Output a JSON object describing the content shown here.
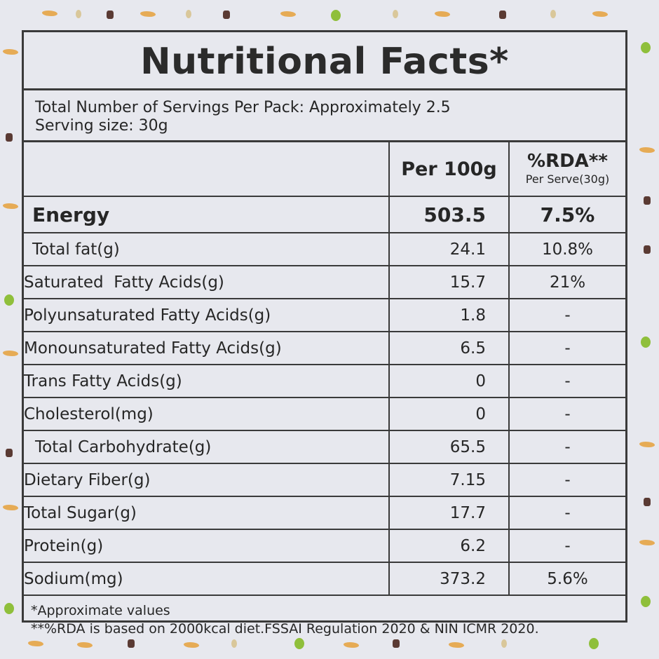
{
  "title": "Nutritional Facts*",
  "servings": {
    "per_pack": "Total Number of Servings Per Pack: Approximately 2.5",
    "serving_size": "Serving size: 30g"
  },
  "columns": {
    "per100": "Per 100g",
    "rda": "%RDA**",
    "rda_sub": "Per Serve(30g)"
  },
  "energy": {
    "label": "Energy",
    "per100": "503.5",
    "rda": "7.5%"
  },
  "rows": [
    {
      "label": "Total fat(g)",
      "per100": "24.1",
      "rda": "10.8%"
    },
    {
      "label": "Saturated  Fatty Acids(g)",
      "per100": "15.7",
      "rda": "21%"
    },
    {
      "label": "Polyunsaturated Fatty Acids(g)",
      "per100": "1.8",
      "rda": "-"
    },
    {
      "label": "Monounsaturated Fatty Acids(g)",
      "per100": "6.5",
      "rda": "-"
    },
    {
      "label": "Trans Fatty Acids(g)",
      "per100": "0",
      "rda": "-"
    },
    {
      "label": "Cholesterol(mg)",
      "per100": "0",
      "rda": "-"
    },
    {
      "label": "Total Carbohydrate(g)",
      "per100": "65.5",
      "rda": "-"
    },
    {
      "label": "Dietary Fiber(g)",
      "per100": "7.15",
      "rda": "-"
    },
    {
      "label": "Total Sugar(g)",
      "per100": "17.7",
      "rda": "-"
    },
    {
      "label": "Protein(g)",
      "per100": "6.2",
      "rda": "-"
    },
    {
      "label": "Sodium(mg)",
      "per100": "373.2",
      "rda": "5.6%"
    }
  ],
  "footnotes": {
    "approx": "*Approximate values",
    "rda_basis": "**%RDA is based on 2000kcal diet.FSSAI Regulation 2020 & NIN ICMR 2020."
  },
  "colors": {
    "background": "#e7e8ee",
    "border": "#3a3a3a",
    "text": "#262626"
  }
}
